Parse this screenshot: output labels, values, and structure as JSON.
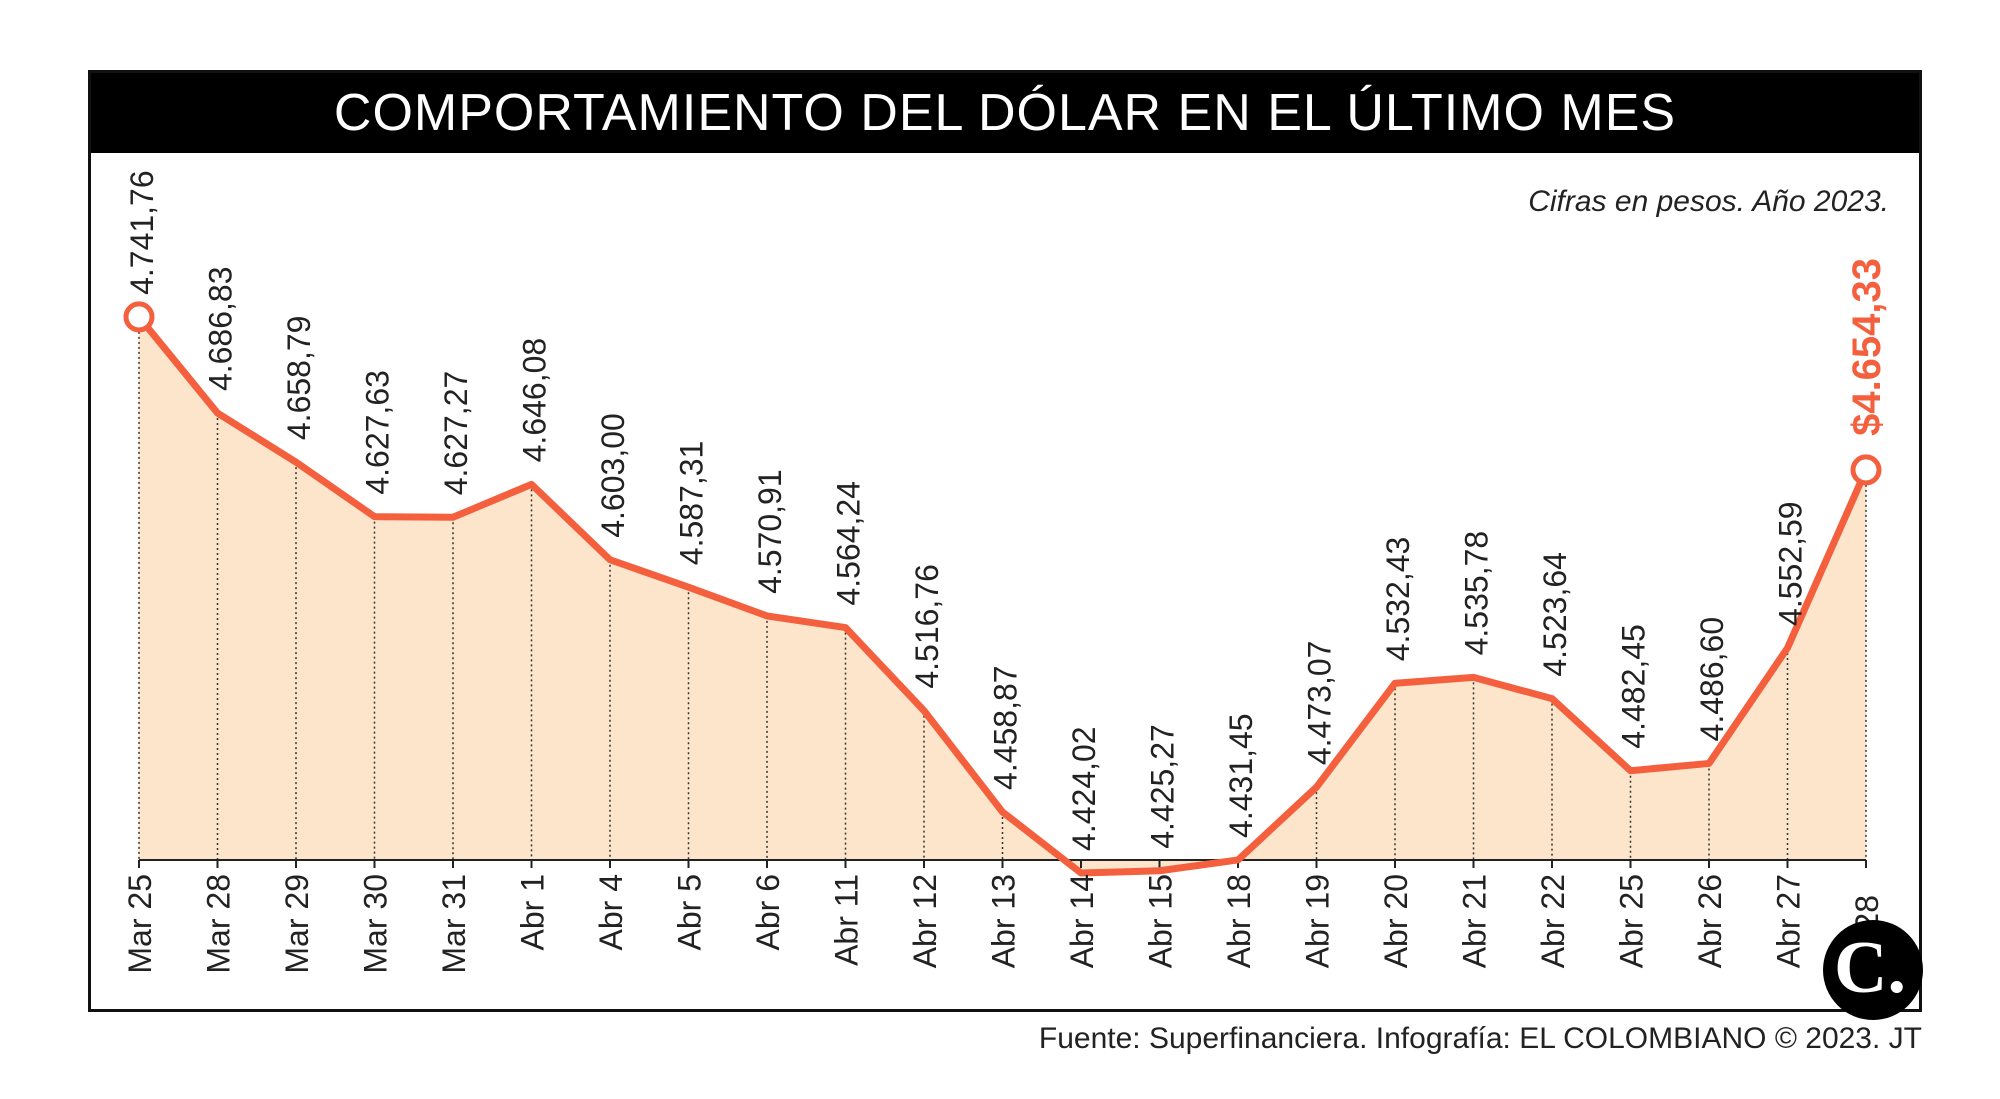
{
  "title": "COMPORTAMIENTO DEL DÓLAR EN EL ÚLTIMO MES",
  "subtitle": "Cifras en pesos. Año 2023.",
  "source": "Fuente: Superfinanciera. Infografía: EL COLOMBIANO © 2023. JT",
  "logo_text": "C.",
  "highlight_label": "$4.654,33",
  "colors": {
    "line": "#f4603e",
    "fill": "#fde5cb",
    "title_bg": "#000000",
    "text": "#222222"
  },
  "chart_data": {
    "type": "area",
    "grid": false,
    "legend": "none",
    "ylim": [
      4380,
      4760
    ],
    "x": [
      "Mar 25",
      "Mar 28",
      "Mar 29",
      "Mar 30",
      "Mar 31",
      "Abr 1",
      "Abr 4",
      "Abr 5",
      "Abr 6",
      "Abr 11",
      "Abr 12",
      "Abr 13",
      "Abr 14",
      "Abr 15",
      "Abr 18",
      "Abr 19",
      "Abr 20",
      "Abr 21",
      "Abr 22",
      "Abr 25",
      "Abr 26",
      "Abr 27",
      "Abr 28"
    ],
    "values": [
      4741.76,
      4686.83,
      4658.79,
      4627.63,
      4627.27,
      4646.08,
      4603.0,
      4587.31,
      4570.91,
      4564.24,
      4516.76,
      4458.87,
      4424.02,
      4425.27,
      4431.45,
      4473.07,
      4532.43,
      4535.78,
      4523.64,
      4482.45,
      4486.6,
      4552.59,
      4654.33
    ],
    "value_labels": [
      "4.741,76",
      "4.686,83",
      "4.658,79",
      "4.627,63",
      "4.627,27",
      "4.646,08",
      "4.603,00",
      "4.587,31",
      "4.570,91",
      "4.564,24",
      "4.516,76",
      "4.458,87",
      "4.424,02",
      "4.425,27",
      "4.431,45",
      "4.473,07",
      "4.532,43",
      "4.535,78",
      "4.523,64",
      "4.482,45",
      "4.486,60",
      "4.552,59",
      "$4.654,33"
    ]
  }
}
